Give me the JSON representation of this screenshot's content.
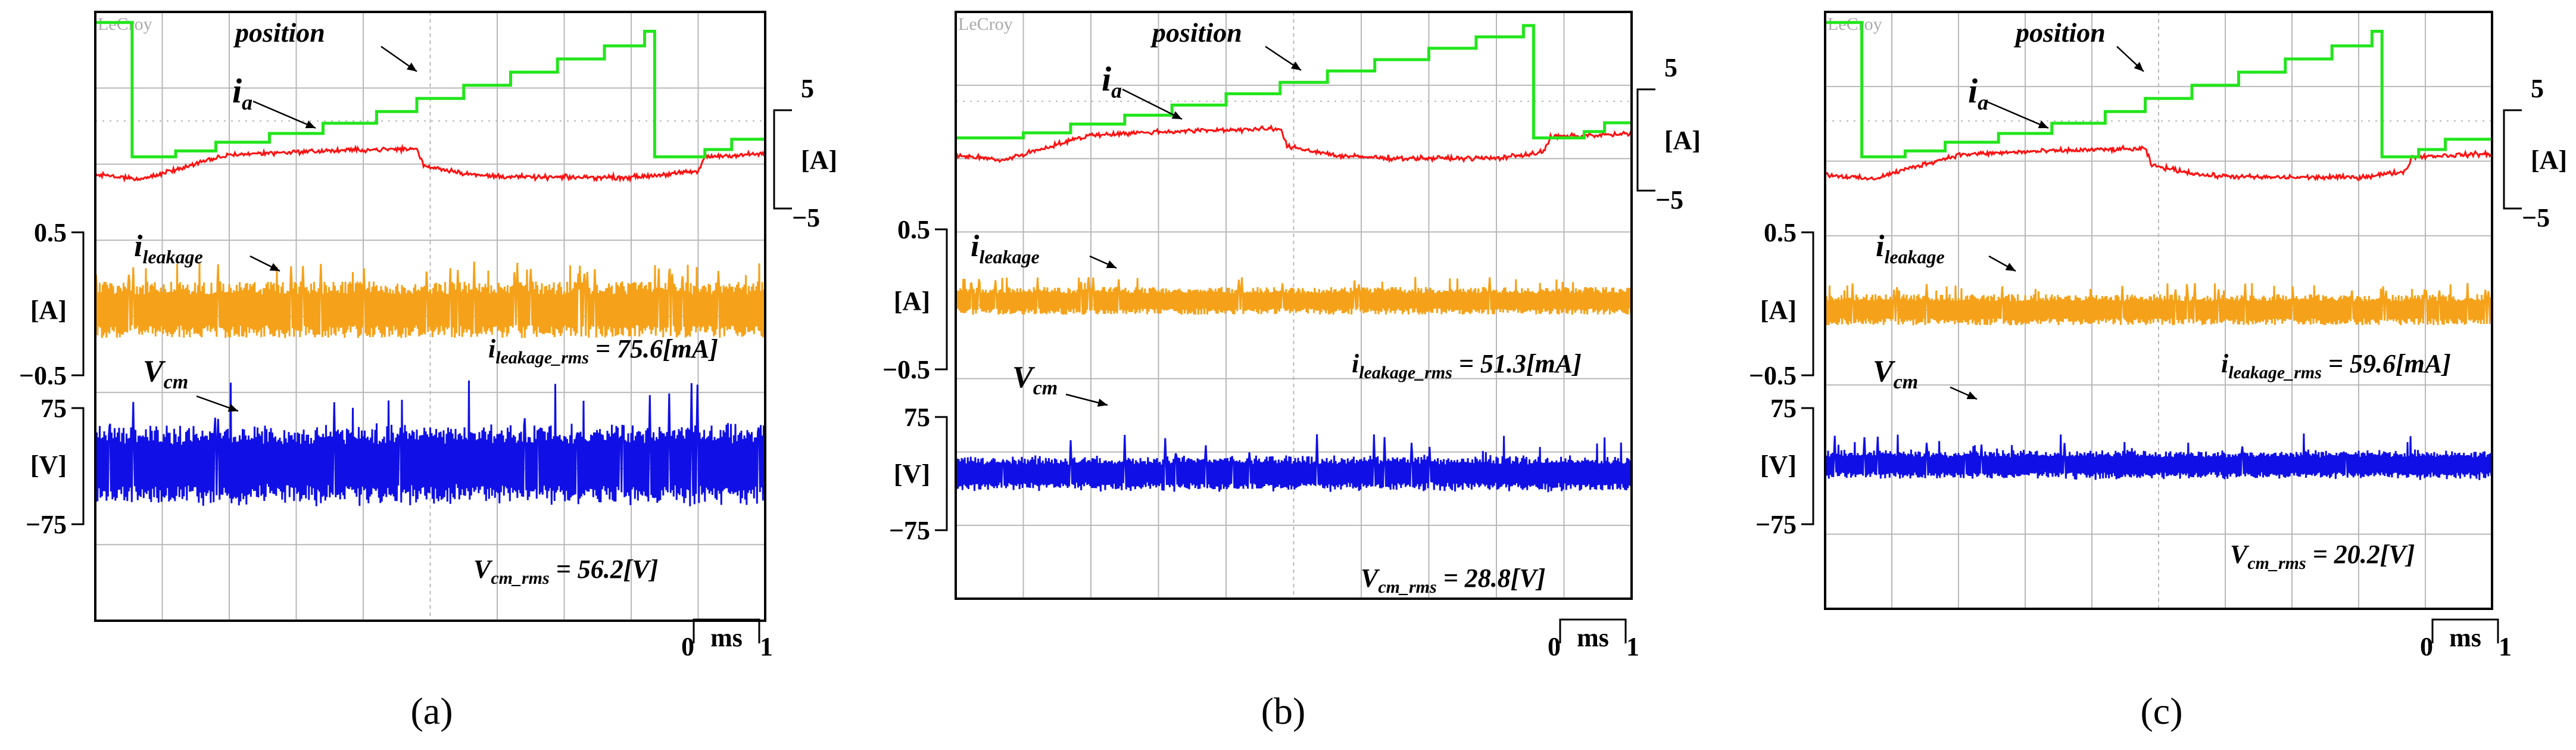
{
  "figure": {
    "panels": [
      "(a)",
      "(b)",
      "(c)"
    ],
    "brand": "LeCroy"
  },
  "colors": {
    "position": "#22e51c",
    "ia": "#ff1010",
    "leakage": "#f5a21a",
    "vcm": "#1010e6",
    "grid": "#b8b8b8",
    "frame": "#000000",
    "scope_bg": "#ffffff"
  },
  "chart_data": [
    {
      "type": "line",
      "title": "(a)",
      "time_axis": {
        "unit": "ms",
        "scale_start": "0",
        "scale_end": "1",
        "divisions": 10
      },
      "labels": {
        "position": "position",
        "ia_main": "i",
        "ia_sub": "a",
        "leak_main": "i",
        "leak_sub": "leakage",
        "vcm_main": "V",
        "vcm_sub": "cm"
      },
      "scale_labels": {
        "ia_top": "5",
        "ia_unit": "[A]",
        "ia_bottom": "−5",
        "leak_top": "0.5",
        "leak_unit": "[A]",
        "leak_bottom": "−0.5",
        "vcm_top": "75",
        "vcm_unit": "[V]",
        "vcm_bottom": "−75"
      },
      "annotations": {
        "leak_rms_main": "i",
        "leak_rms_sub": "leakage_rms",
        "leak_rms_eq": " = 75.6",
        "leak_rms_unit": "[mA]",
        "vcm_rms_main": "V",
        "vcm_rms_sub": "cm_rms",
        "vcm_rms_eq": " = 56.2",
        "vcm_rms_unit": "[V]"
      },
      "leakage_rms_mA": 75.6,
      "vcm_rms_V": 56.2,
      "ia_A": [
        {
          "t": 0.0,
          "i": -1.5
        },
        {
          "t": 0.07,
          "i": -2.0
        },
        {
          "t": 0.12,
          "i": -1.0
        },
        {
          "t": 0.2,
          "i": 0.5
        },
        {
          "t": 0.3,
          "i": 0.8
        },
        {
          "t": 0.4,
          "i": 1.0
        },
        {
          "t": 0.48,
          "i": 1.1
        },
        {
          "t": 0.49,
          "i": -0.6
        },
        {
          "t": 0.57,
          "i": -1.6
        },
        {
          "t": 0.65,
          "i": -1.8
        },
        {
          "t": 0.8,
          "i": -1.8
        },
        {
          "t": 0.9,
          "i": -1.2
        },
        {
          "t": 0.91,
          "i": 0.3
        },
        {
          "t": 1.0,
          "i": 0.6
        }
      ],
      "position_steps": [
        {
          "t": 0.0,
          "level": 0.96
        },
        {
          "t": 0.055,
          "level": 0.04
        },
        {
          "t": 0.12,
          "level": 0.08
        },
        {
          "t": 0.18,
          "level": 0.14
        },
        {
          "t": 0.26,
          "level": 0.2
        },
        {
          "t": 0.34,
          "level": 0.27
        },
        {
          "t": 0.42,
          "level": 0.35
        },
        {
          "t": 0.48,
          "level": 0.44
        },
        {
          "t": 0.55,
          "level": 0.53
        },
        {
          "t": 0.62,
          "level": 0.62
        },
        {
          "t": 0.69,
          "level": 0.71
        },
        {
          "t": 0.76,
          "level": 0.8
        },
        {
          "t": 0.82,
          "level": 0.9
        },
        {
          "t": 0.835,
          "level": 0.04
        },
        {
          "t": 0.91,
          "level": 0.09
        },
        {
          "t": 0.95,
          "level": 0.16
        }
      ],
      "leakage_band_A": 0.4,
      "vcm_band_V": 55
    },
    {
      "type": "line",
      "title": "(b)",
      "time_axis": {
        "unit": "ms",
        "scale_start": "0",
        "scale_end": "1",
        "divisions": 10
      },
      "labels": {
        "position": "position",
        "ia_main": "i",
        "ia_sub": "a",
        "leak_main": "i",
        "leak_sub": "leakage",
        "vcm_main": "V",
        "vcm_sub": "cm"
      },
      "scale_labels": {
        "ia_top": "5",
        "ia_unit": "[A]",
        "ia_bottom": "−5",
        "leak_top": "0.5",
        "leak_unit": "[A]",
        "leak_bottom": "−0.5",
        "vcm_top": "75",
        "vcm_unit": "[V]",
        "vcm_bottom": "−75"
      },
      "annotations": {
        "leak_rms_main": "i",
        "leak_rms_sub": "leakage_rms",
        "leak_rms_eq": " = 51.3",
        "leak_rms_unit": "[mA]",
        "vcm_rms_main": "V",
        "vcm_rms_sub": "cm_rms",
        "vcm_rms_eq": " = 28.8",
        "vcm_rms_unit": "[V]"
      },
      "leakage_rms_mA": 51.3,
      "vcm_rms_V": 28.8,
      "ia_A": [
        {
          "t": 0.0,
          "i": -1.5
        },
        {
          "t": 0.07,
          "i": -2.0
        },
        {
          "t": 0.12,
          "i": -1.0
        },
        {
          "t": 0.2,
          "i": 0.5
        },
        {
          "t": 0.3,
          "i": 0.8
        },
        {
          "t": 0.4,
          "i": 1.0
        },
        {
          "t": 0.48,
          "i": 1.1
        },
        {
          "t": 0.49,
          "i": -0.6
        },
        {
          "t": 0.57,
          "i": -1.6
        },
        {
          "t": 0.65,
          "i": -1.8
        },
        {
          "t": 0.8,
          "i": -1.8
        },
        {
          "t": 0.87,
          "i": -1.2
        },
        {
          "t": 0.88,
          "i": 0.3
        },
        {
          "t": 1.0,
          "i": 0.6
        }
      ],
      "position_steps": [
        {
          "t": 0.0,
          "level": 0.04
        },
        {
          "t": 0.1,
          "level": 0.08
        },
        {
          "t": 0.17,
          "level": 0.15
        },
        {
          "t": 0.25,
          "level": 0.22
        },
        {
          "t": 0.32,
          "level": 0.3
        },
        {
          "t": 0.4,
          "level": 0.39
        },
        {
          "t": 0.48,
          "level": 0.48
        },
        {
          "t": 0.55,
          "level": 0.57
        },
        {
          "t": 0.62,
          "level": 0.66
        },
        {
          "t": 0.7,
          "level": 0.75
        },
        {
          "t": 0.77,
          "level": 0.84
        },
        {
          "t": 0.84,
          "level": 0.93
        },
        {
          "t": 0.855,
          "level": 0.04
        },
        {
          "t": 0.93,
          "level": 0.09
        },
        {
          "t": 0.96,
          "level": 0.16
        }
      ],
      "leakage_band_A": 0.2,
      "vcm_band_V": 25
    },
    {
      "type": "line",
      "title": "(c)",
      "time_axis": {
        "unit": "ms",
        "scale_start": "0",
        "scale_end": "1",
        "divisions": 10
      },
      "labels": {
        "position": "position",
        "ia_main": "i",
        "ia_sub": "a",
        "leak_main": "i",
        "leak_sub": "leakage",
        "vcm_main": "V",
        "vcm_sub": "cm"
      },
      "scale_labels": {
        "ia_top": "5",
        "ia_unit": "[A]",
        "ia_bottom": "−5",
        "leak_top": "0.5",
        "leak_unit": "[A]",
        "leak_bottom": "−0.5",
        "vcm_top": "75",
        "vcm_unit": "[V]",
        "vcm_bottom": "−75"
      },
      "annotations": {
        "leak_rms_main": "i",
        "leak_rms_sub": "leakage_rms",
        "leak_rms_eq": " = 59.6",
        "leak_rms_unit": "[mA]",
        "vcm_rms_main": "V",
        "vcm_rms_sub": "cm_rms",
        "vcm_rms_eq": " = 20.2",
        "vcm_rms_unit": "[V]"
      },
      "leakage_rms_mA": 59.6,
      "vcm_rms_V": 20.2,
      "ia_A": [
        {
          "t": 0.0,
          "i": -1.5
        },
        {
          "t": 0.07,
          "i": -2.0
        },
        {
          "t": 0.12,
          "i": -1.0
        },
        {
          "t": 0.2,
          "i": 0.5
        },
        {
          "t": 0.3,
          "i": 0.8
        },
        {
          "t": 0.4,
          "i": 1.0
        },
        {
          "t": 0.48,
          "i": 1.1
        },
        {
          "t": 0.49,
          "i": -0.6
        },
        {
          "t": 0.57,
          "i": -1.6
        },
        {
          "t": 0.65,
          "i": -1.8
        },
        {
          "t": 0.8,
          "i": -1.8
        },
        {
          "t": 0.87,
          "i": -1.2
        },
        {
          "t": 0.88,
          "i": 0.3
        },
        {
          "t": 1.0,
          "i": 0.6
        }
      ],
      "position_steps": [
        {
          "t": 0.0,
          "level": 0.96
        },
        {
          "t": 0.055,
          "level": 0.04
        },
        {
          "t": 0.12,
          "level": 0.08
        },
        {
          "t": 0.18,
          "level": 0.14
        },
        {
          "t": 0.26,
          "level": 0.2
        },
        {
          "t": 0.34,
          "level": 0.27
        },
        {
          "t": 0.42,
          "level": 0.35
        },
        {
          "t": 0.48,
          "level": 0.44
        },
        {
          "t": 0.55,
          "level": 0.53
        },
        {
          "t": 0.62,
          "level": 0.62
        },
        {
          "t": 0.69,
          "level": 0.71
        },
        {
          "t": 0.76,
          "level": 0.8
        },
        {
          "t": 0.82,
          "level": 0.9
        },
        {
          "t": 0.835,
          "level": 0.04
        },
        {
          "t": 0.89,
          "level": 0.09
        },
        {
          "t": 0.93,
          "level": 0.16
        }
      ],
      "leakage_band_A": 0.22,
      "vcm_band_V": 20
    }
  ]
}
